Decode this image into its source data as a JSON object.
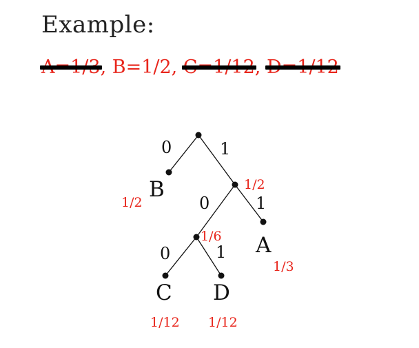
{
  "heading": "Example:",
  "probabilities": {
    "a": "A=1/3",
    "b": "B=1/2",
    "c": "C=1/12",
    "d": "D=1/12",
    "separator": ", "
  },
  "tree": {
    "edges": {
      "root_left": "0",
      "root_right": "1",
      "n1_left": "0",
      "n1_right": "1",
      "n2_left": "0",
      "n2_right": "1"
    },
    "leaves": {
      "b": {
        "name": "B",
        "prob": "1/2"
      },
      "a": {
        "name": "A",
        "prob": "1/3"
      },
      "c": {
        "name": "C",
        "prob": "1/12"
      },
      "d": {
        "name": "D",
        "prob": "1/12"
      }
    },
    "internal": {
      "n1": "1/2",
      "n2": "1/6"
    }
  },
  "colors": {
    "accent": "#e8261c",
    "ink": "#111111"
  }
}
